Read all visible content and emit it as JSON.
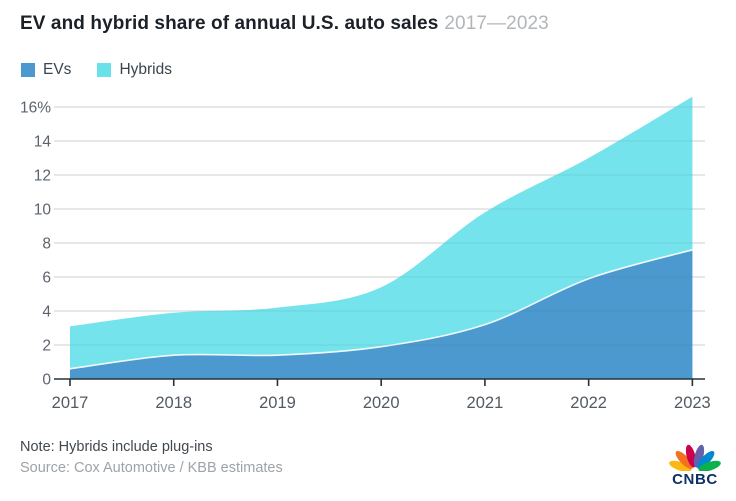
{
  "header": {
    "title": "EV and hybrid share of annual U.S. auto sales",
    "subtitle": "2017—2023"
  },
  "legend": [
    {
      "label": "EVs",
      "color": "#4C99CF"
    },
    {
      "label": "Hybrids",
      "color": "#6AE1E9"
    }
  ],
  "chart_data": {
    "type": "area",
    "stacked": true,
    "title": "EV and hybrid share of annual U.S. auto sales",
    "date_range": "2017—2023",
    "categories": [
      "2017",
      "2018",
      "2019",
      "2020",
      "2021",
      "2022",
      "2023"
    ],
    "series": [
      {
        "name": "EVs",
        "color": "#4C99CF",
        "values": [
          0.6,
          1.4,
          1.4,
          1.9,
          3.2,
          5.9,
          7.6
        ]
      },
      {
        "name": "Hybrids",
        "color": "#6AE1E9",
        "values": [
          2.5,
          2.5,
          2.8,
          3.5,
          6.6,
          7.1,
          9.0
        ]
      }
    ],
    "stacked_totals": [
      3.1,
      3.9,
      4.2,
      5.4,
      9.8,
      13.0,
      16.6
    ],
    "unit": "%",
    "ylim": [
      0,
      16
    ],
    "yticks": {
      "values": [
        0,
        2,
        4,
        6,
        8,
        10,
        12,
        14,
        16
      ],
      "labels": [
        "0",
        "2",
        "4",
        "6",
        "8",
        "10",
        "12",
        "14",
        "16%"
      ]
    },
    "grid": true,
    "grid_color": "#dfdfdf",
    "axis_color": "#27323c",
    "legend_position": "top-left"
  },
  "footer": {
    "note": "Note: Hybrids include plug-ins",
    "source": "Source: Cox Automotive / KBB estimates"
  },
  "branding": {
    "wordmark": "CNBC",
    "wordmark_color": "#0d3166",
    "peacock_colors": [
      "#FCB711",
      "#F37021",
      "#CC004C",
      "#6460AA",
      "#0089D0",
      "#0DB14B"
    ]
  }
}
